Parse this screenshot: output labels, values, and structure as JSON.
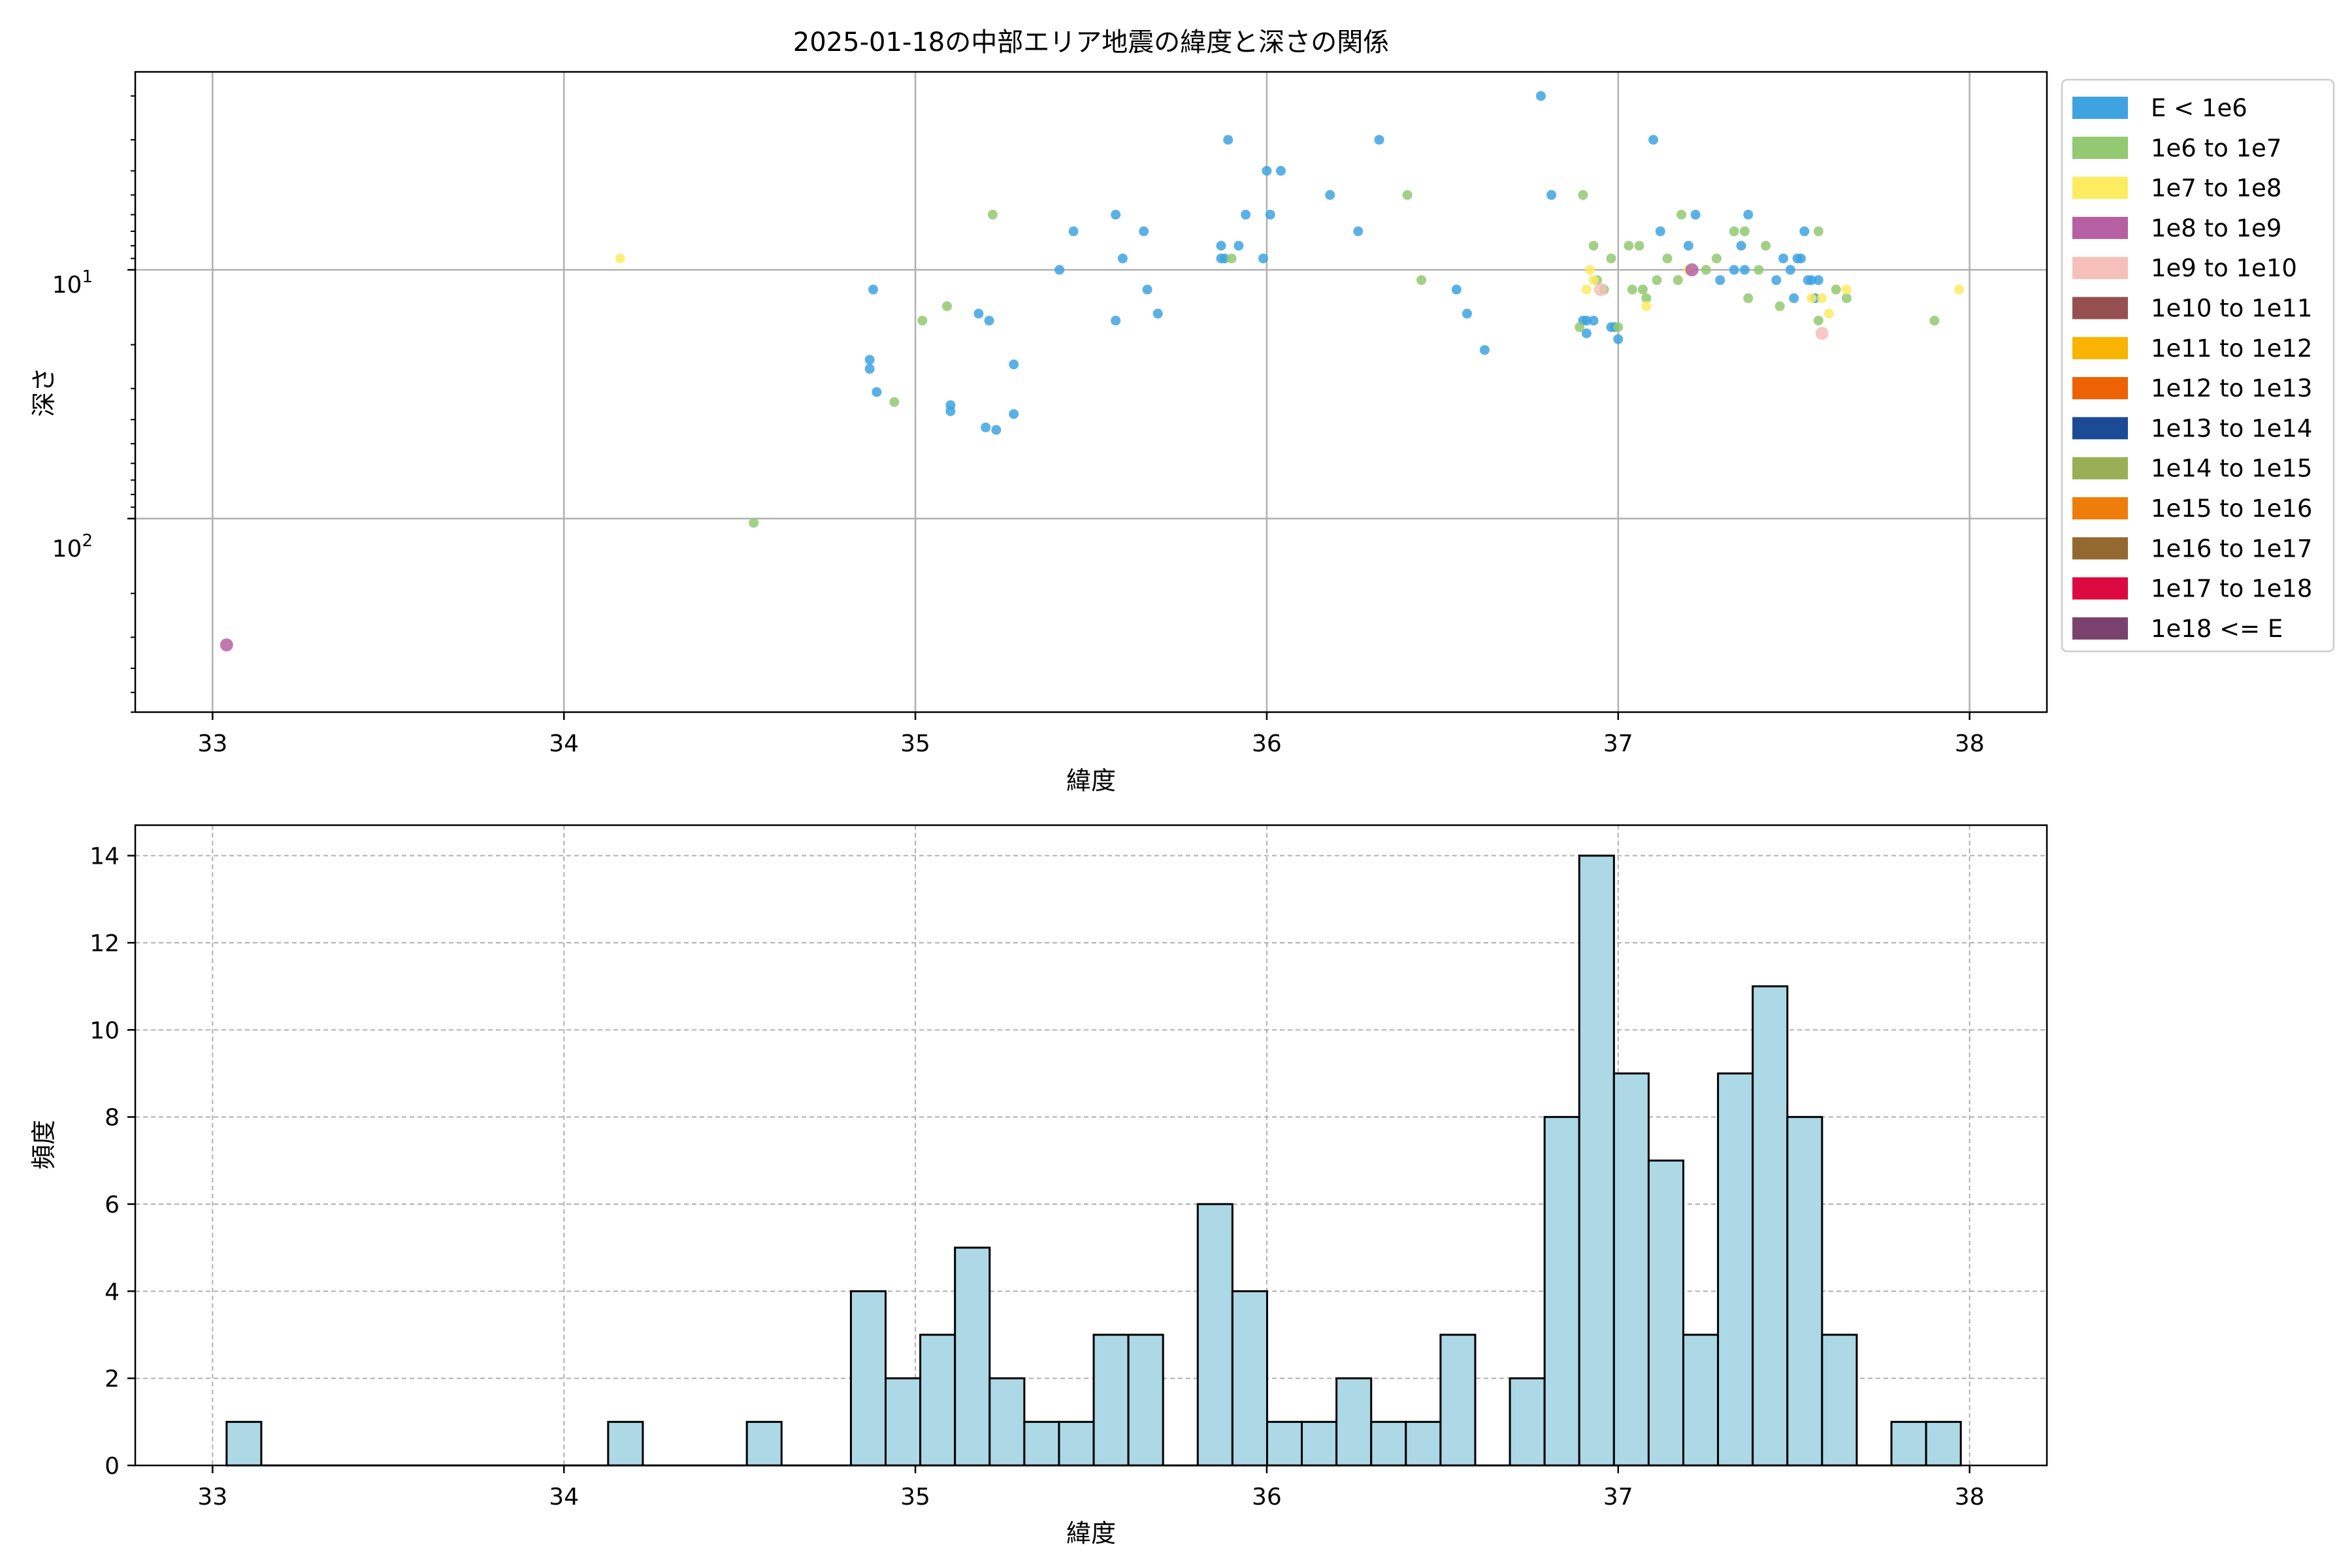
{
  "chart_data": [
    {
      "type": "scatter",
      "title": "2025-01-18の中部エリア地震の緯度と深さの関係",
      "xlabel": "緯度",
      "ylabel": "深さ",
      "xlim": [
        32.78,
        38.22
      ],
      "ylim_log_inverted": [
        1.6,
        600.0
      ],
      "y_scale": "log, inverted",
      "grid": true,
      "xticks": [
        33,
        34,
        35,
        36,
        37,
        38
      ],
      "yticks": [
        {
          "value": 10,
          "base": "10",
          "exp": "1"
        },
        {
          "value": 100,
          "base": "10",
          "exp": "2"
        }
      ],
      "legend_position": "outside-right",
      "legend": [
        {
          "label": "E < 1e6",
          "color": "#3ea3e0"
        },
        {
          "label": "1e6 to 1e7",
          "color": "#92c971"
        },
        {
          "label": "1e7 to 1e8",
          "color": "#fdeb61"
        },
        {
          "label": "1e8 to 1e9",
          "color": "#b660a3"
        },
        {
          "label": "1e9 to 1e10",
          "color": "#f5c0b9"
        },
        {
          "label": "1e10 to 1e11",
          "color": "#965050"
        },
        {
          "label": "1e11 to 1e12",
          "color": "#f8b400"
        },
        {
          "label": "1e12 to 1e13",
          "color": "#ed6203"
        },
        {
          "label": "1e13 to 1e14",
          "color": "#1c4b95"
        },
        {
          "label": "1e14 to 1e15",
          "color": "#9aaf55"
        },
        {
          "label": "1e15 to 1e16",
          "color": "#ef7d0c"
        },
        {
          "label": "1e16 to 1e17",
          "color": "#93692f"
        },
        {
          "label": "1e17 to 1e18",
          "color": "#dc0840"
        },
        {
          "label": "1e18 <= E",
          "color": "#7a416f"
        }
      ],
      "series": [
        {
          "name": "E < 1e6",
          "color": "#3ea3e0",
          "points": [
            [
              34.87,
              23
            ],
            [
              34.87,
              25
            ],
            [
              34.88,
              12
            ],
            [
              34.89,
              31
            ],
            [
              35.1,
              35
            ],
            [
              35.1,
              37
            ],
            [
              35.18,
              15
            ],
            [
              35.2,
              43
            ],
            [
              35.21,
              16
            ],
            [
              35.23,
              44
            ],
            [
              35.28,
              38
            ],
            [
              35.28,
              24
            ],
            [
              35.41,
              10
            ],
            [
              35.45,
              7
            ],
            [
              35.57,
              6
            ],
            [
              35.57,
              16
            ],
            [
              35.59,
              9
            ],
            [
              35.65,
              7
            ],
            [
              35.66,
              12
            ],
            [
              35.69,
              15
            ],
            [
              35.87,
              8
            ],
            [
              35.87,
              9
            ],
            [
              35.88,
              9
            ],
            [
              35.89,
              3
            ],
            [
              35.92,
              8
            ],
            [
              35.94,
              6
            ],
            [
              35.99,
              9
            ],
            [
              36.0,
              4
            ],
            [
              36.01,
              6
            ],
            [
              36.04,
              4
            ],
            [
              36.18,
              5
            ],
            [
              36.26,
              7
            ],
            [
              36.32,
              3
            ],
            [
              36.54,
              12
            ],
            [
              36.57,
              15
            ],
            [
              36.62,
              21
            ],
            [
              36.78,
              2
            ],
            [
              36.81,
              5
            ],
            [
              36.9,
              16
            ],
            [
              36.91,
              16
            ],
            [
              36.93,
              16
            ],
            [
              36.98,
              17
            ],
            [
              36.99,
              17
            ],
            [
              37.0,
              19
            ],
            [
              37.1,
              3
            ],
            [
              37.12,
              7
            ],
            [
              37.2,
              8
            ],
            [
              37.22,
              6
            ],
            [
              37.29,
              11
            ],
            [
              37.33,
              10
            ],
            [
              37.35,
              8
            ],
            [
              37.36,
              10
            ],
            [
              37.37,
              6
            ],
            [
              37.45,
              11
            ],
            [
              37.47,
              9
            ],
            [
              37.49,
              10
            ],
            [
              37.5,
              13
            ],
            [
              37.51,
              9
            ],
            [
              37.52,
              9
            ],
            [
              37.53,
              7
            ],
            [
              37.54,
              11
            ],
            [
              37.55,
              11
            ],
            [
              37.56,
              13
            ],
            [
              37.57,
              11
            ],
            [
              36.91,
              18
            ]
          ]
        },
        {
          "name": "1e6 to 1e7",
          "color": "#92c971",
          "points": [
            [
              34.54,
              104
            ],
            [
              34.94,
              34
            ],
            [
              35.02,
              16
            ],
            [
              35.09,
              14
            ],
            [
              35.22,
              6
            ],
            [
              35.9,
              9
            ],
            [
              36.4,
              5
            ],
            [
              36.44,
              11
            ],
            [
              36.89,
              17
            ],
            [
              36.9,
              5
            ],
            [
              36.93,
              8
            ],
            [
              36.94,
              11
            ],
            [
              36.96,
              12
            ],
            [
              36.98,
              9
            ],
            [
              37.0,
              17
            ],
            [
              37.03,
              8
            ],
            [
              37.04,
              12
            ],
            [
              37.06,
              8
            ],
            [
              37.07,
              12
            ],
            [
              37.08,
              13
            ],
            [
              37.11,
              11
            ],
            [
              37.14,
              9
            ],
            [
              37.17,
              11
            ],
            [
              37.18,
              6
            ],
            [
              37.25,
              10
            ],
            [
              37.28,
              9
            ],
            [
              37.33,
              7
            ],
            [
              37.36,
              7
            ],
            [
              37.37,
              13
            ],
            [
              37.4,
              10
            ],
            [
              37.42,
              8
            ],
            [
              37.46,
              14
            ],
            [
              37.57,
              7
            ],
            [
              37.57,
              16
            ],
            [
              37.62,
              12
            ],
            [
              37.65,
              13
            ],
            [
              37.9,
              16
            ]
          ]
        },
        {
          "name": "1e7 to 1e8",
          "color": "#fdeb61",
          "points": [
            [
              34.16,
              9
            ],
            [
              36.91,
              12
            ],
            [
              36.92,
              10
            ],
            [
              36.93,
              11
            ],
            [
              37.08,
              14
            ],
            [
              37.2,
              10
            ],
            [
              37.55,
              13
            ],
            [
              37.58,
              13
            ],
            [
              37.6,
              15
            ],
            [
              37.65,
              12
            ],
            [
              37.97,
              12
            ]
          ]
        },
        {
          "name": "1e8 to 1e9",
          "color": "#b660a3",
          "points": [
            [
              33.04,
              322
            ],
            [
              37.21,
              10
            ]
          ]
        },
        {
          "name": "1e9 to 1e10",
          "color": "#f5c0b9",
          "points": [
            [
              36.95,
              12
            ],
            [
              37.58,
              18
            ]
          ]
        }
      ]
    },
    {
      "type": "bar",
      "subtype": "histogram",
      "xlabel": "緯度",
      "ylabel": "頻度",
      "xlim": [
        32.78,
        38.22
      ],
      "ylim": [
        0,
        14.7
      ],
      "grid": true,
      "grid_style": "dashed",
      "bar_color": "#add8e6",
      "edge_color": "#000000",
      "xticks": [
        33,
        34,
        35,
        36,
        37,
        38
      ],
      "yticks": [
        0,
        2,
        4,
        6,
        8,
        10,
        12,
        14
      ],
      "bin_start": 33.04,
      "bin_width": 0.0987,
      "values": [
        1,
        0,
        0,
        0,
        0,
        0,
        0,
        0,
        0,
        0,
        0,
        1,
        0,
        0,
        0,
        1,
        0,
        0,
        4,
        2,
        3,
        5,
        2,
        1,
        1,
        3,
        3,
        0,
        6,
        4,
        1,
        1,
        2,
        1,
        1,
        3,
        0,
        2,
        8,
        14,
        9,
        7,
        3,
        9,
        11,
        8,
        3,
        0,
        1,
        1
      ]
    }
  ]
}
